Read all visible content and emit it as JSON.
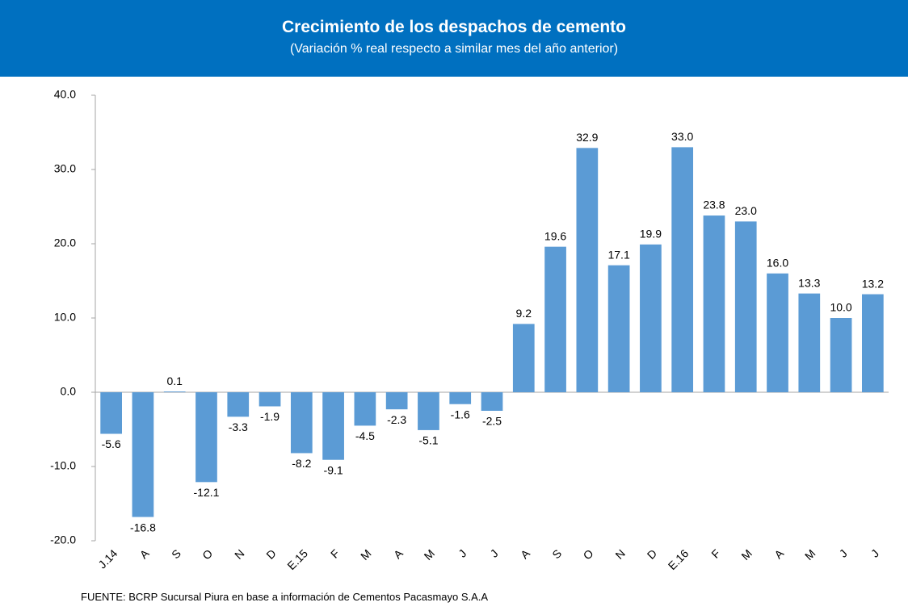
{
  "chart_data": {
    "type": "bar",
    "title": "Crecimiento de los despachos de cemento",
    "subtitle": "(Variación % real respecto a similar mes del año anterior)",
    "categories": [
      "J.14",
      "A",
      "S",
      "O",
      "N",
      "D",
      "E.15",
      "F",
      "M",
      "A",
      "M",
      "J",
      "J",
      "A",
      "S",
      "O",
      "N",
      "D",
      "E.16",
      "F",
      "M",
      "A",
      "M",
      "J",
      "J"
    ],
    "values": [
      -5.6,
      -16.8,
      0.1,
      -12.1,
      -3.3,
      -1.9,
      -8.2,
      -9.1,
      -4.5,
      -2.3,
      -5.1,
      -1.6,
      -2.5,
      9.2,
      19.6,
      32.9,
      17.1,
      19.9,
      33.0,
      23.8,
      23.0,
      16.0,
      13.3,
      10.0,
      13.2
    ],
    "value_labels": [
      "-5.6",
      "-16.8",
      "0.1",
      "-12.1",
      "-3.3",
      "-1.9",
      "-8.2",
      "-9.1",
      "-4.5",
      "-2.3",
      "-5.1",
      "-1.6",
      "-2.5",
      "9.2",
      "19.6",
      "32.9",
      "17.1",
      "19.9",
      "33.0",
      "23.8",
      "23.0",
      "16.0",
      "13.3",
      "10.0",
      "13.2"
    ],
    "color": "#5b9bd5",
    "ylim": [
      -20,
      40
    ],
    "yticks": [
      {
        "value": -20,
        "label": "-20.0"
      },
      {
        "value": -10,
        "label": "-10.0"
      },
      {
        "value": 0,
        "label": "0.0"
      },
      {
        "value": 10,
        "label": "10.0"
      },
      {
        "value": 20,
        "label": "20.0"
      },
      {
        "value": 30,
        "label": "30.0"
      },
      {
        "value": 40,
        "label": "40.0"
      }
    ],
    "source": "FUENTE:   BCRP Sucursal Piura en base a información de Cementos Pacasmayo S.A.A"
  }
}
